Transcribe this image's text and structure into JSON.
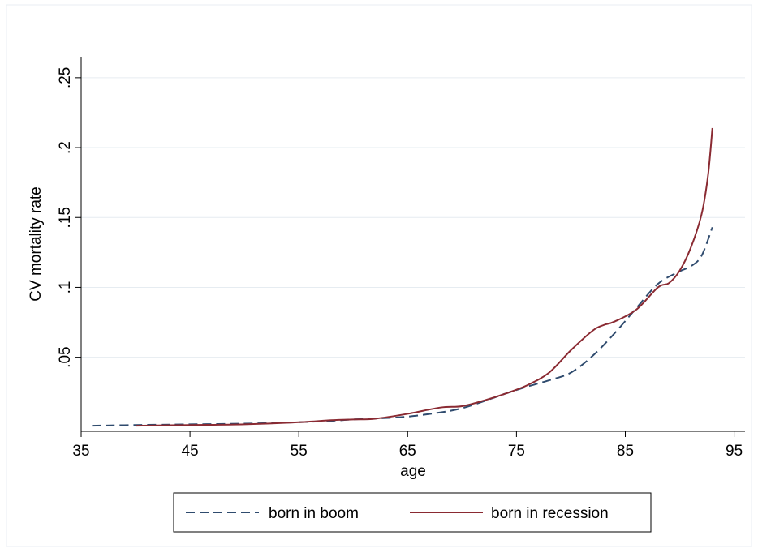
{
  "chart_data": {
    "type": "line",
    "title": "",
    "xlabel": "age",
    "ylabel": "CV mortality rate",
    "xlim": [
      35,
      96
    ],
    "ylim": [
      -0.003,
      0.265
    ],
    "x_ticks": [
      35,
      45,
      55,
      65,
      75,
      85,
      95
    ],
    "y_ticks": [
      0.05,
      0.1,
      0.15,
      0.2,
      0.25
    ],
    "y_tick_labels": [
      ".05",
      ".1",
      ".15",
      ".2",
      ".25"
    ],
    "grid": "horizontal",
    "legend_position": "bottom",
    "series": [
      {
        "name": "born in boom",
        "color": "#2f4b6e",
        "dash": "dashed",
        "points": [
          [
            36,
            0.001
          ],
          [
            40,
            0.0015
          ],
          [
            45,
            0.002
          ],
          [
            50,
            0.0025
          ],
          [
            55,
            0.0035
          ],
          [
            58,
            0.0045
          ],
          [
            60,
            0.0055
          ],
          [
            63,
            0.0065
          ],
          [
            65,
            0.0075
          ],
          [
            68,
            0.0105
          ],
          [
            70,
            0.0135
          ],
          [
            72,
            0.0185
          ],
          [
            74,
            0.024
          ],
          [
            76,
            0.029
          ],
          [
            78,
            0.0335
          ],
          [
            80,
            0.039
          ],
          [
            82,
            0.051
          ],
          [
            84,
            0.067
          ],
          [
            86,
            0.085
          ],
          [
            88,
            0.1025
          ],
          [
            90,
            0.1115
          ],
          [
            91,
            0.115
          ],
          [
            92,
            0.1225
          ],
          [
            93,
            0.143
          ]
        ]
      },
      {
        "name": "born in recession",
        "color": "#8a2a32",
        "dash": "solid",
        "points": [
          [
            40,
            0.001
          ],
          [
            45,
            0.0015
          ],
          [
            50,
            0.002
          ],
          [
            55,
            0.0035
          ],
          [
            58,
            0.005
          ],
          [
            60,
            0.0055
          ],
          [
            62,
            0.006
          ],
          [
            65,
            0.0095
          ],
          [
            68,
            0.014
          ],
          [
            70,
            0.015
          ],
          [
            72,
            0.019
          ],
          [
            74,
            0.024
          ],
          [
            76,
            0.03
          ],
          [
            78,
            0.039
          ],
          [
            80,
            0.055
          ],
          [
            82,
            0.069
          ],
          [
            83,
            0.073
          ],
          [
            84,
            0.0755
          ],
          [
            86,
            0.084
          ],
          [
            88,
            0.1
          ],
          [
            89,
            0.103
          ],
          [
            90,
            0.112
          ],
          [
            91,
            0.128
          ],
          [
            92,
            0.152
          ],
          [
            92.6,
            0.18
          ],
          [
            93,
            0.214
          ]
        ]
      }
    ]
  }
}
